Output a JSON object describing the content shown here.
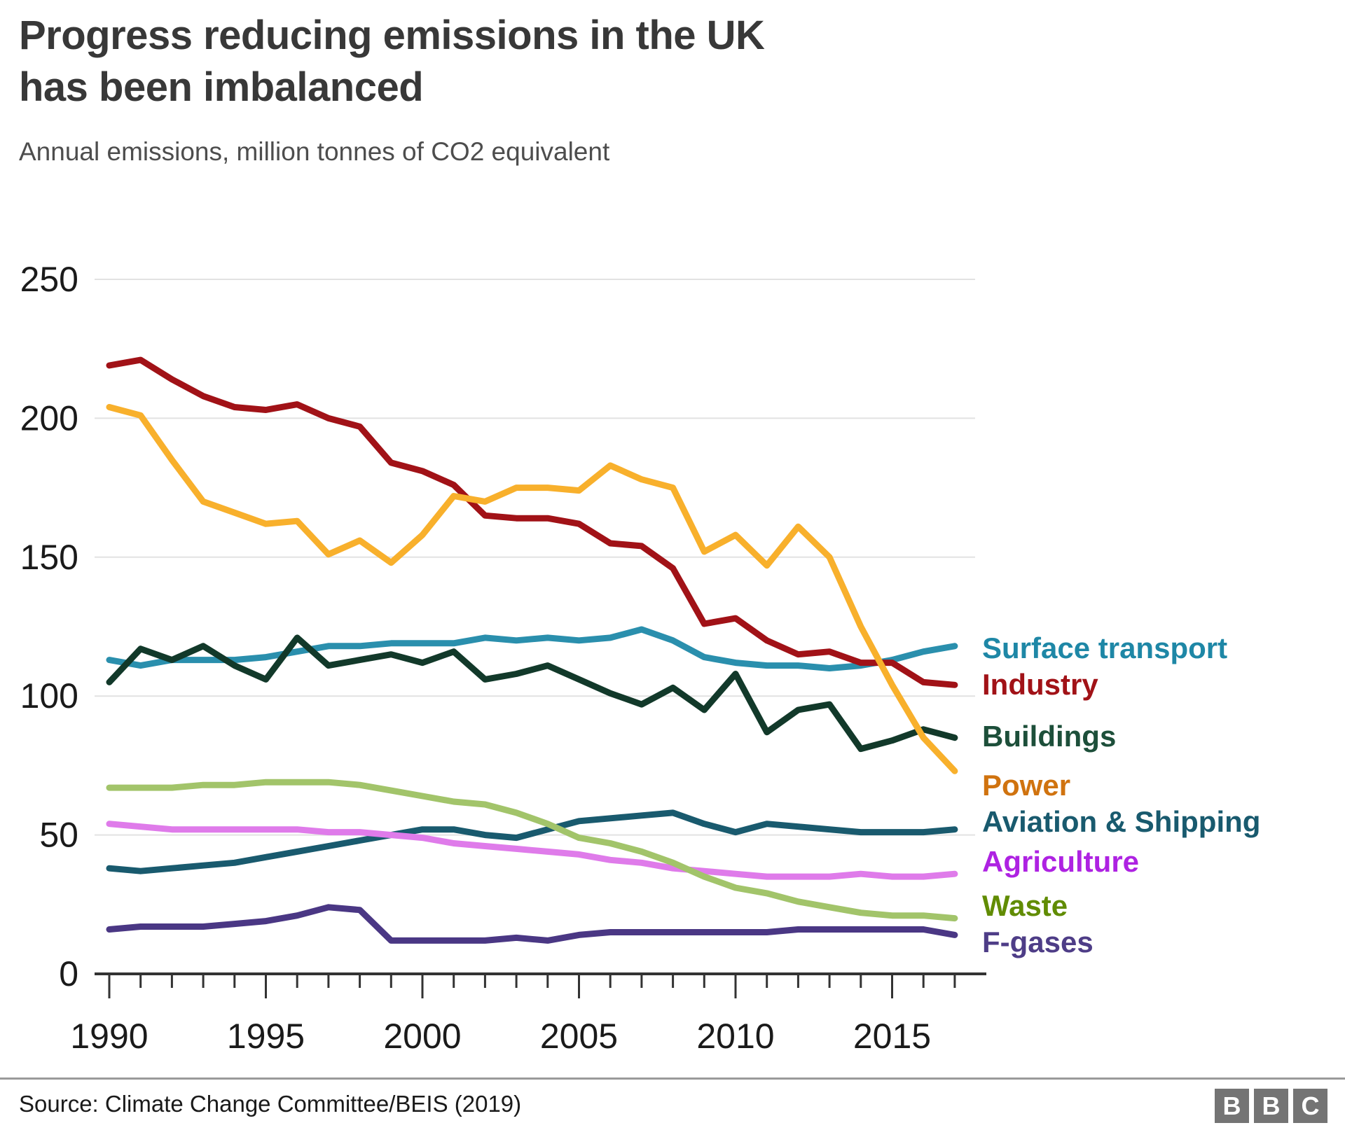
{
  "header": {
    "title_lines": [
      "Progress reducing emissions in the UK",
      "has been imbalanced"
    ]
  },
  "footer": {
    "source": "Source: Climate Change Committee/BEIS (2019)",
    "logo_letters": [
      "B",
      "B",
      "C"
    ]
  },
  "chart_data": {
    "type": "line",
    "title": "Progress reducing emissions in the UK has been imbalanced",
    "subtitle": "Annual emissions, million tonnes of CO2 equivalent",
    "xlabel": "",
    "ylabel": "Annual emissions, million tonnes of CO2 equivalent",
    "x": [
      1990,
      1991,
      1992,
      1993,
      1994,
      1995,
      1996,
      1997,
      1998,
      1999,
      2000,
      2001,
      2002,
      2003,
      2004,
      2005,
      2006,
      2007,
      2008,
      2009,
      2010,
      2011,
      2012,
      2013,
      2014,
      2015,
      2016,
      2017
    ],
    "x_tick_labels": [
      1990,
      1995,
      2000,
      2005,
      2010,
      2015
    ],
    "ylim": [
      0,
      250
    ],
    "y_ticks": [
      0,
      50,
      100,
      150,
      200,
      250
    ],
    "grid": "horizontal",
    "legend_position": "right",
    "series": [
      {
        "id": "surface-transport",
        "name": "Surface transport",
        "line_color": "#2a8fad",
        "label_color": "#1e87a6",
        "values": [
          113,
          111,
          113,
          113,
          113,
          114,
          116,
          118,
          118,
          119,
          119,
          119,
          121,
          120,
          121,
          120,
          121,
          124,
          120,
          114,
          112,
          111,
          111,
          110,
          111,
          113,
          116,
          118
        ]
      },
      {
        "id": "industry",
        "name": "Industry",
        "line_color": "#a11217",
        "label_color": "#a11217",
        "values": [
          219,
          221,
          214,
          208,
          204,
          203,
          205,
          200,
          197,
          184,
          181,
          176,
          165,
          164,
          164,
          162,
          155,
          154,
          146,
          126,
          128,
          120,
          115,
          116,
          112,
          112,
          105,
          104
        ]
      },
      {
        "id": "buildings",
        "name": "Buildings",
        "line_color": "#12392a",
        "label_color": "#1d4f3a",
        "values": [
          105,
          117,
          113,
          118,
          111,
          106,
          121,
          111,
          113,
          115,
          112,
          116,
          106,
          108,
          111,
          106,
          101,
          97,
          103,
          95,
          108,
          87,
          95,
          97,
          81,
          84,
          88,
          85
        ]
      },
      {
        "id": "power",
        "name": "Power",
        "line_color": "#f8b02c",
        "label_color": "#d0730f",
        "values": [
          204,
          201,
          185,
          170,
          166,
          162,
          163,
          151,
          156,
          148,
          158,
          172,
          170,
          175,
          175,
          174,
          183,
          178,
          175,
          152,
          158,
          147,
          161,
          150,
          125,
          104,
          85,
          73
        ]
      },
      {
        "id": "aviation-shipping",
        "name": "Aviation & Shipping",
        "line_color": "#195a6e",
        "label_color": "#195a6e",
        "values": [
          38,
          37,
          38,
          39,
          40,
          42,
          44,
          46,
          48,
          50,
          52,
          52,
          50,
          49,
          52,
          55,
          56,
          57,
          58,
          54,
          51,
          54,
          53,
          52,
          51,
          51,
          51,
          52
        ]
      },
      {
        "id": "agriculture",
        "name": "Agriculture",
        "line_color": "#df7bea",
        "label_color": "#ae22e2",
        "values": [
          54,
          53,
          52,
          52,
          52,
          52,
          52,
          51,
          51,
          50,
          49,
          47,
          46,
          45,
          44,
          43,
          41,
          40,
          38,
          37,
          36,
          35,
          35,
          35,
          36,
          35,
          35,
          36
        ]
      },
      {
        "id": "waste",
        "name": "Waste",
        "line_color": "#a2c46a",
        "label_color": "#618c03",
        "values": [
          67,
          67,
          67,
          68,
          68,
          69,
          69,
          69,
          68,
          66,
          64,
          62,
          61,
          58,
          54,
          49,
          47,
          44,
          40,
          35,
          31,
          29,
          26,
          24,
          22,
          21,
          21,
          20
        ]
      },
      {
        "id": "f-gases",
        "name": "F-gases",
        "line_color": "#4a3784",
        "label_color": "#4e3d87",
        "values": [
          16,
          17,
          17,
          17,
          18,
          19,
          21,
          24,
          23,
          12,
          12,
          12,
          12,
          13,
          12,
          14,
          15,
          15,
          15,
          15,
          15,
          15,
          16,
          16,
          16,
          16,
          16,
          14
        ]
      }
    ]
  }
}
